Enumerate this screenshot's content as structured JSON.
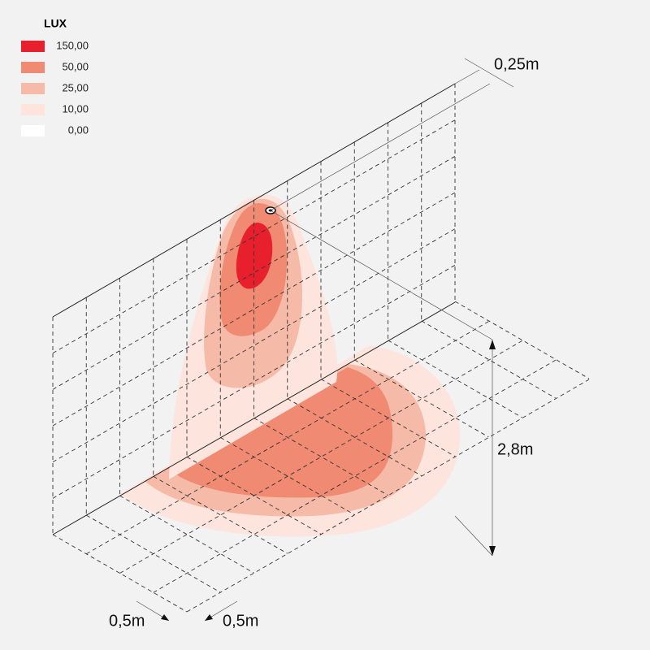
{
  "legend": {
    "title": "LUX",
    "items": [
      {
        "label": "150,00",
        "color": "#e8202e"
      },
      {
        "label": "50,00",
        "color": "#f08a72"
      },
      {
        "label": "25,00",
        "color": "#f6bba8"
      },
      {
        "label": "10,00",
        "color": "#fde4dc"
      },
      {
        "label": "0,00",
        "color": "#ffffff"
      }
    ]
  },
  "dimensions": {
    "offset": "0,25m",
    "height": "2,8m",
    "depth": "0,5m",
    "spacing": "0,5m"
  }
}
